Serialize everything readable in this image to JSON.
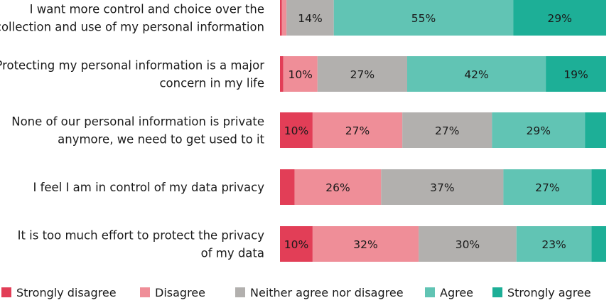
{
  "chart_data": {
    "type": "bar",
    "orientation": "horizontal",
    "stacked": true,
    "grid": false,
    "legend_position": "bottom",
    "categories": [
      [
        "I want more control and choice over the",
        "collection and use of my personal information"
      ],
      [
        "Protecting my personal information is a major",
        "concern in my life"
      ],
      [
        "None of our personal information is private",
        "anymore, we need to get used to it"
      ],
      [
        "I feel I am in control of my data privacy"
      ],
      [
        "It is too much effort to protect the privacy",
        "of my data"
      ]
    ],
    "series": [
      {
        "name": "Strongly disagree",
        "color": "#e23e57",
        "values": [
          0.6,
          1,
          10,
          4.5,
          10
        ],
        "labels": [
          "",
          "",
          "10%",
          "",
          "10%"
        ]
      },
      {
        "name": "Disagree",
        "color": "#ef8e98",
        "values": [
          1.4,
          10.5,
          27.5,
          26.5,
          32.5
        ],
        "labels": [
          "",
          "10%",
          "27%",
          "26%",
          "32%"
        ]
      },
      {
        "name": "Neither agree nor disagree",
        "color": "#b2b0ae",
        "values": [
          14.5,
          27.5,
          27.5,
          37.5,
          30
        ],
        "labels": [
          "14%",
          "27%",
          "27%",
          "37%",
          "30%"
        ]
      },
      {
        "name": "Agree",
        "color": "#61c4b4",
        "values": [
          55,
          42.5,
          28.5,
          27,
          23
        ],
        "labels": [
          "55%",
          "42%",
          "29%",
          "27%",
          "23%"
        ]
      },
      {
        "name": "Strongly agree",
        "color": "#1daf97",
        "values": [
          28.5,
          18.5,
          6.5,
          4.5,
          4.5
        ],
        "labels": [
          "29%",
          "19%",
          "",
          "",
          ""
        ]
      }
    ]
  }
}
